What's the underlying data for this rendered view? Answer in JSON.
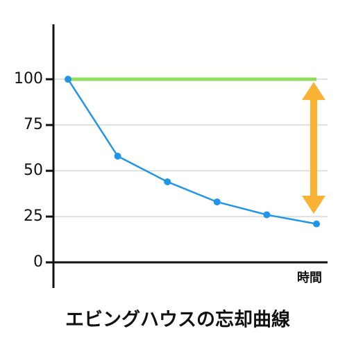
{
  "chart_data": {
    "type": "line",
    "title": "エビングハウスの忘却曲線",
    "x_label": "時間",
    "categories": [
      null,
      null,
      null,
      null,
      null,
      null
    ],
    "series": [
      {
        "color": "#2196e8",
        "values": [
          100,
          58,
          44,
          33,
          26,
          21
        ]
      }
    ],
    "reference_line": {
      "value": 100,
      "color": "#8fde5d"
    },
    "ylim": [
      -14,
      130
    ],
    "yticks": [
      0,
      25,
      50,
      75,
      100
    ],
    "grid": true
  }
}
